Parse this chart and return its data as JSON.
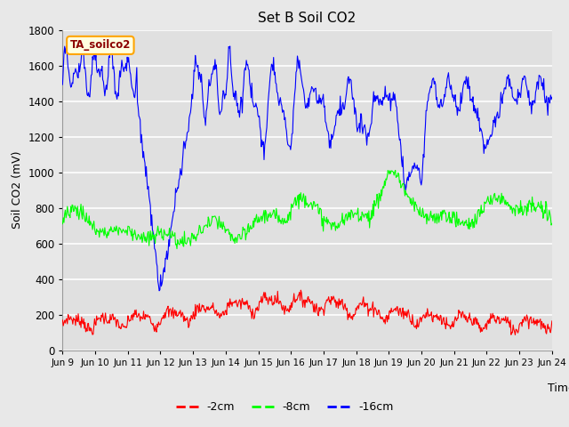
{
  "title": "Set B Soil CO2",
  "ylabel": "Soil CO2 (mV)",
  "xlabel": "Time",
  "legend_label": "TA_soilco2",
  "series_labels": [
    "-2cm",
    "-8cm",
    "-16cm"
  ],
  "series_colors": [
    "red",
    "lime",
    "blue"
  ],
  "ylim": [
    0,
    1800
  ],
  "yticks": [
    0,
    200,
    400,
    600,
    800,
    1000,
    1200,
    1400,
    1600,
    1800
  ],
  "fig_bg": "#e8e8e8",
  "plot_bg": "#e0e0e0",
  "grid_color": "#ffffff",
  "n_points": 720,
  "x_tick_days": [
    9,
    10,
    11,
    12,
    13,
    14,
    15,
    16,
    17,
    18,
    19,
    20,
    21,
    22,
    23,
    24
  ],
  "x_tick_labels": [
    "Jun 9",
    "Jun 10",
    "Jun 11",
    "Jun 12",
    "Jun 13",
    "Jun 14",
    "Jun 15",
    "Jun 16",
    "Jun 17",
    "Jun 18",
    "Jun 19",
    "Jun 20",
    "Jun 21",
    "Jun 22",
    "Jun 23",
    "Jun 24"
  ]
}
